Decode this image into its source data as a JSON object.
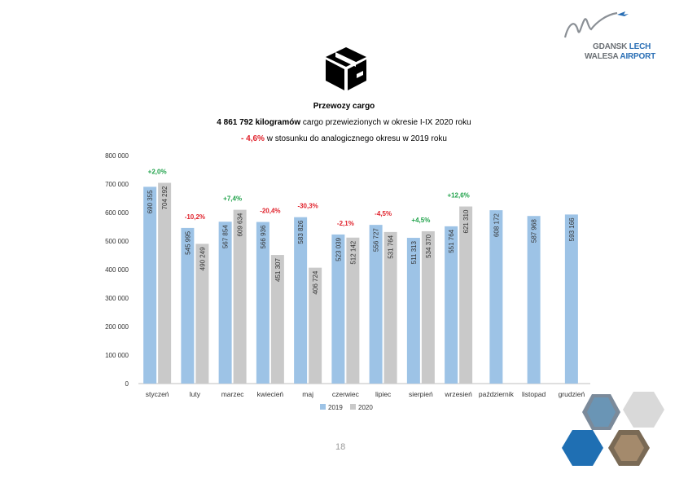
{
  "logo": {
    "line1_a": "GDANSK ",
    "line1_b": "LECH",
    "line2_a": "WALESA ",
    "line2_b": "AIRPORT"
  },
  "header": {
    "title": "Przewozy cargo",
    "line2_bold": "4 861 792 kilogramów",
    "line2_rest": " cargo przewiezionych w okresie I-IX 2020 roku",
    "line3_neg": "- 4,6%",
    "line3_rest": " w stosunku do analogicznego okresu w 2019 roku"
  },
  "page_number": "18",
  "colors": {
    "s2019": "#9dc3e6",
    "s2020": "#c9c9c9",
    "pos": "#1fa24a",
    "neg": "#e0202a"
  },
  "chart_data": {
    "type": "bar",
    "title": "",
    "xlabel": "",
    "ylabel": "",
    "ylim": [
      0,
      800000
    ],
    "yticks": [
      "0",
      "100 000",
      "200 000",
      "300 000",
      "400 000",
      "500 000",
      "600 000",
      "700 000",
      "800 000"
    ],
    "grid": false,
    "legend_position": "bottom",
    "categories": [
      "styczeń",
      "luty",
      "marzec",
      "kwiecień",
      "maj",
      "czerwiec",
      "lipiec",
      "sierpień",
      "wrzesień",
      "październik",
      "listopad",
      "grudzień"
    ],
    "series": [
      {
        "name": "2019",
        "values": [
          690355,
          545995,
          567854,
          566936,
          583826,
          523039,
          556727,
          511313,
          551764,
          608172,
          587968,
          593166
        ],
        "labels": [
          "690 355",
          "545 995",
          "567 854",
          "566 936",
          "583 826",
          "523 039",
          "556 727",
          "511 313",
          "551 764",
          "608 172",
          "587 968",
          "593 166"
        ]
      },
      {
        "name": "2020",
        "values": [
          704292,
          490249,
          609634,
          451307,
          406724,
          512142,
          531764,
          534370,
          621310,
          null,
          null,
          null
        ],
        "labels": [
          "704 292",
          "490 249",
          "609 634",
          "451 307",
          "406 724",
          "512 142",
          "531 764",
          "534 370",
          "621 310",
          "",
          "",
          ""
        ]
      }
    ],
    "changes": [
      "+2,0%",
      "-10,2%",
      "+7,4%",
      "-20,4%",
      "-30,3%",
      "-2,1%",
      "-4,5%",
      "+4,5%",
      "+12,6%",
      "",
      "",
      ""
    ]
  }
}
